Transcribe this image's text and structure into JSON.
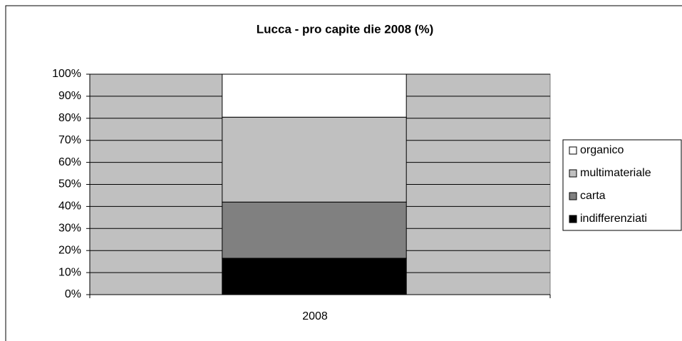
{
  "chart_data": {
    "type": "stacked_bar_100",
    "title": "Lucca - pro capite die 2008 (%)",
    "categories": [
      "2008"
    ],
    "series": [
      {
        "name": "indifferenziati",
        "color": "#000000",
        "values": [
          16.5
        ]
      },
      {
        "name": "carta",
        "color": "#808080",
        "values": [
          25.5
        ]
      },
      {
        "name": "multimateriale",
        "color": "#c0c0c0",
        "values": [
          38.5
        ]
      },
      {
        "name": "organico",
        "color": "#ffffff",
        "values": [
          19.5
        ]
      }
    ],
    "ylim": [
      0,
      100
    ],
    "yticks": [
      {
        "value": 0,
        "label": "0%"
      },
      {
        "value": 10,
        "label": "10%"
      },
      {
        "value": 20,
        "label": "20%"
      },
      {
        "value": 30,
        "label": "30%"
      },
      {
        "value": 40,
        "label": "40%"
      },
      {
        "value": 50,
        "label": "50%"
      },
      {
        "value": 60,
        "label": "60%"
      },
      {
        "value": 70,
        "label": "70%"
      },
      {
        "value": 80,
        "label": "80%"
      },
      {
        "value": 90,
        "label": "90%"
      },
      {
        "value": 100,
        "label": "100%"
      }
    ],
    "grid": true,
    "plot_background": "#c0c0c0",
    "legend": "right"
  }
}
